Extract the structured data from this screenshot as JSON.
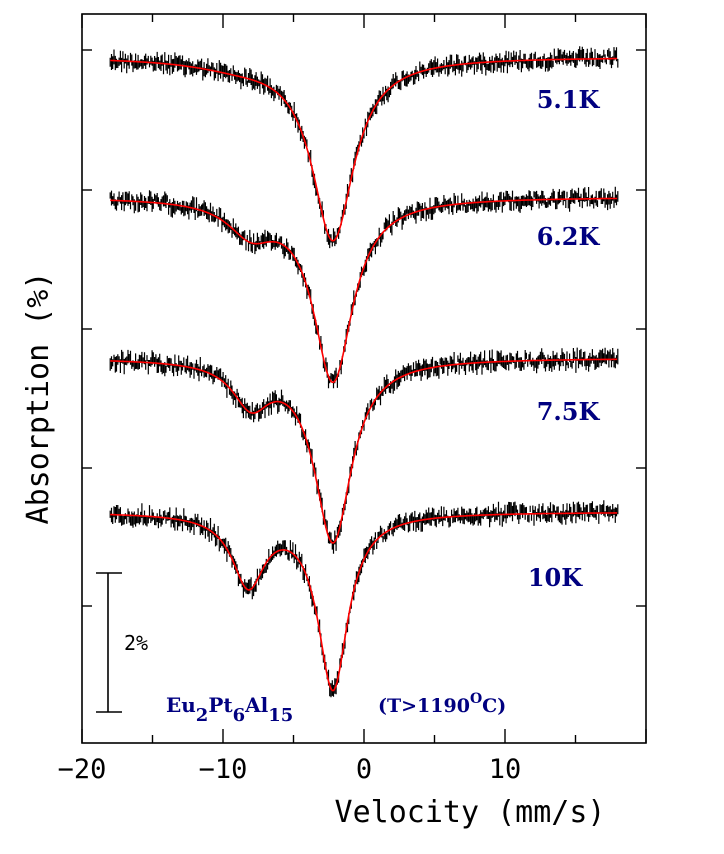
{
  "chart_data": {
    "type": "line",
    "xlabel": "Velocity (mm/s)",
    "ylabel": "Absorption (%)",
    "xlim": [
      -20,
      20
    ],
    "x_ticks": [
      -20,
      -10,
      0,
      10
    ],
    "grid": false,
    "scale_bar": {
      "label": "2%",
      "value": 2
    },
    "sample": {
      "base": "Eu",
      "sub1": "2",
      "mid1": "Pt",
      "sub2": "6",
      "mid2": "Al",
      "sub3": "15"
    },
    "condition": {
      "prefix": "(T>1190",
      "sup": "O",
      "suffix": "C)"
    },
    "series": [
      {
        "name": "5.1K",
        "offset": 0.0,
        "baseline": 0.0,
        "dips": [
          {
            "center": -2.2,
            "depth": 2.6,
            "width": 1.8
          },
          {
            "center": -9.0,
            "depth": 0.1,
            "width": 4.0
          }
        ]
      },
      {
        "name": "6.2K",
        "offset": 2.0,
        "baseline": 0.0,
        "dips": [
          {
            "center": -2.2,
            "depth": 2.6,
            "width": 1.7
          },
          {
            "center": -8.0,
            "depth": 0.45,
            "width": 2.0
          }
        ]
      },
      {
        "name": "7.5K",
        "offset": 4.3,
        "baseline": 0.0,
        "dips": [
          {
            "center": -2.2,
            "depth": 2.6,
            "width": 1.6
          },
          {
            "center": -8.0,
            "depth": 0.6,
            "width": 1.6
          }
        ]
      },
      {
        "name": "10K",
        "offset": 6.5,
        "baseline": 0.0,
        "dips": [
          {
            "center": -2.2,
            "depth": 2.5,
            "width": 1.3
          },
          {
            "center": -8.2,
            "depth": 1.0,
            "width": 1.4
          }
        ]
      }
    ],
    "colors": {
      "fit": "#ff0000",
      "data": "#000000",
      "label": "#000080",
      "axis": "#000000"
    }
  }
}
